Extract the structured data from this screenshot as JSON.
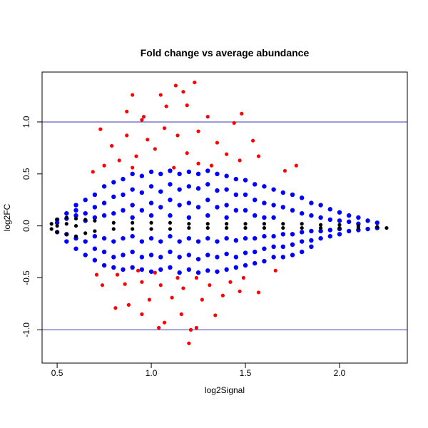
{
  "chart_data": {
    "type": "scatter",
    "title": "Fold change vs average abundance",
    "xlabel": "log2Signal",
    "ylabel": "log2FC",
    "xlim": [
      0.42,
      2.36
    ],
    "ylim": [
      -1.32,
      1.48
    ],
    "xticks": [
      0.5,
      1.0,
      1.5,
      2.0
    ],
    "xtick_labels": [
      "0.5",
      "1.0",
      "1.5",
      "2.0"
    ],
    "yticks": [
      -1.0,
      -0.5,
      0.0,
      0.5,
      1.0
    ],
    "ytick_labels": [
      "-1.0",
      "-0.5",
      "0.0",
      "0.5",
      "1.0"
    ],
    "grid": false,
    "reference_lines": [
      {
        "y": 1.0,
        "color": "#3a3ab0"
      },
      {
        "y": -1.0,
        "color": "#3a3ab0"
      }
    ],
    "series": [
      {
        "color": "#0000ff",
        "columns": [
          {
            "x": 0.5,
            "y": [
              0.06,
              -0.06,
              0.03
            ]
          },
          {
            "x": 0.55,
            "y": [
              0.12,
              0.07,
              -0.08,
              -0.15
            ]
          },
          {
            "x": 0.6,
            "y": [
              0.2,
              0.1,
              -0.12,
              -0.22,
              0.15
            ]
          },
          {
            "x": 0.65,
            "y": [
              0.25,
              0.12,
              -0.15,
              -0.28,
              0.05
            ]
          },
          {
            "x": 0.7,
            "y": [
              0.3,
              0.18,
              0.08,
              -0.1,
              -0.22,
              -0.33
            ]
          },
          {
            "x": 0.75,
            "y": [
              0.38,
              0.22,
              0.1,
              -0.12,
              -0.25,
              -0.38
            ]
          },
          {
            "x": 0.8,
            "y": [
              0.42,
              0.28,
              0.12,
              -0.15,
              -0.3,
              -0.4
            ]
          },
          {
            "x": 0.85,
            "y": [
              0.45,
              0.3,
              0.15,
              -0.12,
              -0.28,
              -0.42
            ]
          },
          {
            "x": 0.9,
            "y": [
              0.5,
              0.35,
              0.2,
              0.08,
              -0.1,
              -0.25,
              -0.4
            ]
          },
          {
            "x": 0.95,
            "y": [
              0.48,
              0.32,
              0.15,
              -0.15,
              -0.3,
              -0.42
            ]
          },
          {
            "x": 1.0,
            "y": [
              0.52,
              0.38,
              0.22,
              0.1,
              -0.12,
              -0.28,
              -0.44
            ]
          },
          {
            "x": 1.05,
            "y": [
              0.5,
              0.33,
              0.18,
              -0.15,
              -0.3,
              -0.42
            ]
          },
          {
            "x": 1.1,
            "y": [
              0.53,
              0.4,
              0.25,
              0.1,
              -0.1,
              -0.25,
              -0.4
            ]
          },
          {
            "x": 1.15,
            "y": [
              0.5,
              0.35,
              0.2,
              -0.15,
              -0.3,
              -0.45
            ]
          },
          {
            "x": 1.2,
            "y": [
              0.52,
              0.38,
              0.22,
              0.08,
              -0.12,
              -0.28,
              -0.42
            ]
          },
          {
            "x": 1.25,
            "y": [
              0.5,
              0.36,
              0.18,
              -0.15,
              -0.32,
              -0.45
            ]
          },
          {
            "x": 1.3,
            "y": [
              0.53,
              0.4,
              0.25,
              0.1,
              -0.12,
              -0.28,
              -0.43
            ]
          },
          {
            "x": 1.35,
            "y": [
              0.5,
              0.34,
              0.18,
              -0.15,
              -0.3,
              -0.44
            ]
          },
          {
            "x": 1.4,
            "y": [
              0.48,
              0.35,
              0.2,
              0.08,
              -0.12,
              -0.27,
              -0.42
            ]
          },
          {
            "x": 1.45,
            "y": [
              0.45,
              0.3,
              0.15,
              -0.14,
              -0.3,
              -0.4
            ]
          },
          {
            "x": 1.5,
            "y": [
              0.44,
              0.3,
              0.15,
              -0.12,
              -0.26,
              -0.38
            ]
          },
          {
            "x": 1.55,
            "y": [
              0.4,
              0.25,
              0.1,
              -0.12,
              -0.25,
              -0.36
            ]
          },
          {
            "x": 1.6,
            "y": [
              0.38,
              0.22,
              0.08,
              -0.1,
              -0.22,
              -0.34
            ]
          },
          {
            "x": 1.65,
            "y": [
              0.35,
              0.2,
              0.08,
              -0.1,
              -0.2,
              -0.3
            ]
          },
          {
            "x": 1.7,
            "y": [
              0.32,
              0.18,
              -0.08,
              -0.2,
              -0.3
            ]
          },
          {
            "x": 1.75,
            "y": [
              0.3,
              0.15,
              -0.08,
              -0.18,
              -0.28
            ]
          },
          {
            "x": 1.8,
            "y": [
              0.27,
              0.12,
              -0.06,
              -0.15,
              -0.25
            ]
          },
          {
            "x": 1.85,
            "y": [
              0.22,
              0.1,
              -0.05,
              -0.14,
              -0.2
            ]
          },
          {
            "x": 1.9,
            "y": [
              0.2,
              0.08,
              -0.05,
              -0.12
            ]
          },
          {
            "x": 1.95,
            "y": [
              0.16,
              0.06,
              -0.04,
              -0.1
            ]
          },
          {
            "x": 2.0,
            "y": [
              0.13,
              0.05,
              -0.03,
              -0.08
            ]
          },
          {
            "x": 2.05,
            "y": [
              0.1,
              0.04,
              -0.05
            ]
          },
          {
            "x": 2.1,
            "y": [
              0.08,
              0.02,
              -0.04
            ]
          },
          {
            "x": 2.15,
            "y": [
              0.05,
              -0.03
            ]
          },
          {
            "x": 2.2,
            "y": [
              0.03,
              -0.02
            ]
          }
        ]
      },
      {
        "color": "#000000",
        "columns": [
          {
            "x": 0.47,
            "y": [
              0.02,
              -0.03
            ]
          },
          {
            "x": 0.5,
            "y": [
              0.06,
              -0.06,
              0.0
            ]
          },
          {
            "x": 0.55,
            "y": [
              0.08,
              -0.08,
              0.02
            ]
          },
          {
            "x": 0.6,
            "y": [
              0.07,
              -0.1,
              0.0
            ]
          },
          {
            "x": 0.65,
            "y": [
              0.06,
              -0.07
            ]
          },
          {
            "x": 0.7,
            "y": [
              0.05,
              -0.05
            ]
          },
          {
            "x": 0.8,
            "y": [
              0.03,
              -0.03
            ]
          },
          {
            "x": 0.9,
            "y": [
              0.03,
              -0.03
            ]
          },
          {
            "x": 1.0,
            "y": [
              0.03,
              -0.03
            ]
          },
          {
            "x": 1.1,
            "y": [
              0.03,
              -0.03
            ]
          },
          {
            "x": 1.2,
            "y": [
              0.02,
              -0.02
            ]
          },
          {
            "x": 1.3,
            "y": [
              0.02,
              -0.02
            ]
          },
          {
            "x": 1.4,
            "y": [
              0.02,
              -0.02
            ]
          },
          {
            "x": 1.5,
            "y": [
              0.02,
              -0.02
            ]
          },
          {
            "x": 1.6,
            "y": [
              0.02,
              -0.02
            ]
          },
          {
            "x": 1.7,
            "y": [
              0.02,
              -0.02
            ]
          },
          {
            "x": 1.8,
            "y": [
              0.02,
              -0.02
            ]
          },
          {
            "x": 1.9,
            "y": [
              0.01,
              -0.02
            ]
          },
          {
            "x": 2.0,
            "y": [
              0.01,
              -0.02
            ]
          },
          {
            "x": 2.1,
            "y": [
              0.0,
              -0.02
            ]
          },
          {
            "x": 2.2,
            "y": [
              -0.01
            ]
          },
          {
            "x": 2.25,
            "y": [
              -0.02
            ]
          }
        ]
      },
      {
        "color": "#ff0000",
        "points": [
          [
            0.87,
            1.1
          ],
          [
            0.9,
            1.26
          ],
          [
            1.05,
            1.26
          ],
          [
            1.13,
            1.35
          ],
          [
            1.23,
            1.38
          ],
          [
            1.17,
            1.29
          ],
          [
            0.95,
            1.02
          ],
          [
            0.96,
            1.05
          ],
          [
            1.08,
            1.15
          ],
          [
            1.19,
            1.16
          ],
          [
            1.3,
            1.05
          ],
          [
            1.48,
            1.08
          ],
          [
            1.44,
            0.99
          ],
          [
            0.87,
            0.87
          ],
          [
            0.79,
            0.77
          ],
          [
            0.73,
            0.93
          ],
          [
            0.83,
            0.63
          ],
          [
            0.98,
            0.83
          ],
          [
            1.07,
            0.94
          ],
          [
            1.14,
            0.87
          ],
          [
            1.25,
            0.91
          ],
          [
            1.35,
            0.8
          ],
          [
            1.4,
            0.69
          ],
          [
            1.54,
            0.82
          ],
          [
            1.57,
            0.67
          ],
          [
            1.47,
            0.63
          ],
          [
            1.02,
            0.74
          ],
          [
            0.92,
            0.67
          ],
          [
            1.19,
            0.7
          ],
          [
            1.32,
            0.58
          ],
          [
            1.71,
            0.53
          ],
          [
            1.77,
            0.58
          ],
          [
            0.75,
            0.58
          ],
          [
            0.69,
            0.52
          ],
          [
            0.9,
            0.56
          ],
          [
            1.12,
            0.56
          ],
          [
            1.25,
            0.6
          ],
          [
            1.2,
            -1.13
          ],
          [
            1.04,
            -0.98
          ],
          [
            1.07,
            -0.93
          ],
          [
            1.24,
            -0.98
          ],
          [
            1.21,
            -1.0
          ],
          [
            1.16,
            -0.85
          ],
          [
            1.34,
            -0.86
          ],
          [
            0.95,
            -0.85
          ],
          [
            0.88,
            -0.76
          ],
          [
            0.81,
            -0.79
          ],
          [
            0.99,
            -0.71
          ],
          [
            1.11,
            -0.69
          ],
          [
            1.27,
            -0.71
          ],
          [
            1.38,
            -0.67
          ],
          [
            1.47,
            -0.63
          ],
          [
            1.57,
            -0.64
          ],
          [
            0.74,
            -0.57
          ],
          [
            0.86,
            -0.56
          ],
          [
            0.95,
            -0.54
          ],
          [
            1.05,
            -0.57
          ],
          [
            1.17,
            -0.6
          ],
          [
            1.31,
            -0.57
          ],
          [
            1.42,
            -0.54
          ],
          [
            0.71,
            -0.47
          ],
          [
            0.82,
            -0.47
          ],
          [
            0.93,
            -0.43
          ],
          [
            1.02,
            -0.45
          ],
          [
            1.14,
            -0.5
          ],
          [
            1.24,
            -0.5
          ],
          [
            1.49,
            -0.5
          ],
          [
            1.66,
            -0.43
          ]
        ]
      }
    ]
  }
}
